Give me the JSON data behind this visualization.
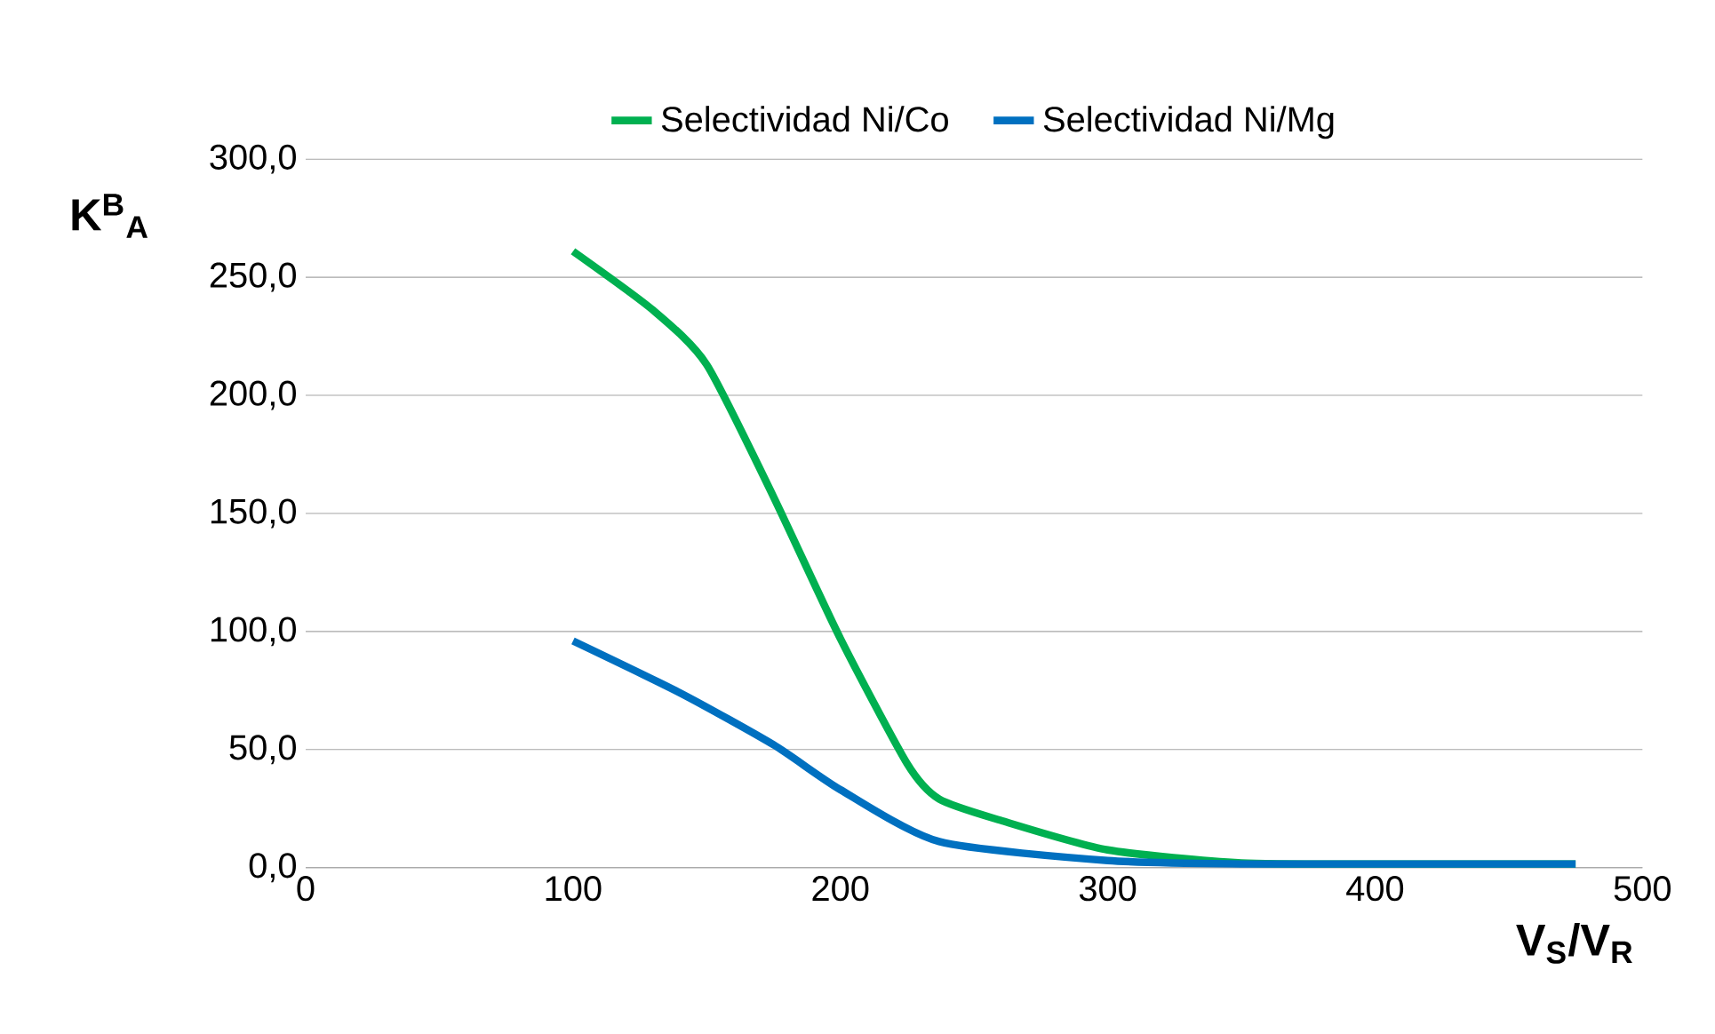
{
  "chart_data": {
    "type": "line",
    "xlabel": "V$_{S}$/V$_{R}$",
    "ylabel": "K$^{B}$$_{A}$",
    "xlim": [
      0,
      500
    ],
    "xticks": [
      0,
      100,
      200,
      300,
      400,
      500
    ],
    "ylim": [
      0,
      300
    ],
    "yticks": [
      {
        "value": 0,
        "label": "0,0"
      },
      {
        "value": 50,
        "label": "50,0"
      },
      {
        "value": 100,
        "label": "100,0"
      },
      {
        "value": 150,
        "label": "150,0"
      },
      {
        "value": 200,
        "label": "200,0"
      },
      {
        "value": 250,
        "label": "250,0"
      },
      {
        "value": 300,
        "label": "300,0"
      }
    ],
    "grid": "y",
    "legend": "top",
    "marker": "none",
    "series": [
      {
        "name": "Selectividad Ni/Co",
        "color": "#00b050",
        "x": [
          100,
          130,
          150,
          175,
          200,
          225,
          237,
          260,
          300,
          350,
          400,
          475
        ],
        "values": [
          261,
          236,
          213,
          157,
          97,
          44,
          29,
          20,
          7.5,
          2,
          1.5,
          1.5
        ]
      },
      {
        "name": "Selectividad Ni/Mg",
        "color": "#0070c0",
        "x": [
          100,
          140,
          175,
          200,
          237,
          300,
          350,
          400,
          475
        ],
        "values": [
          96,
          74,
          52,
          33,
          11,
          3,
          1.5,
          1.5,
          1.5
        ]
      }
    ]
  }
}
